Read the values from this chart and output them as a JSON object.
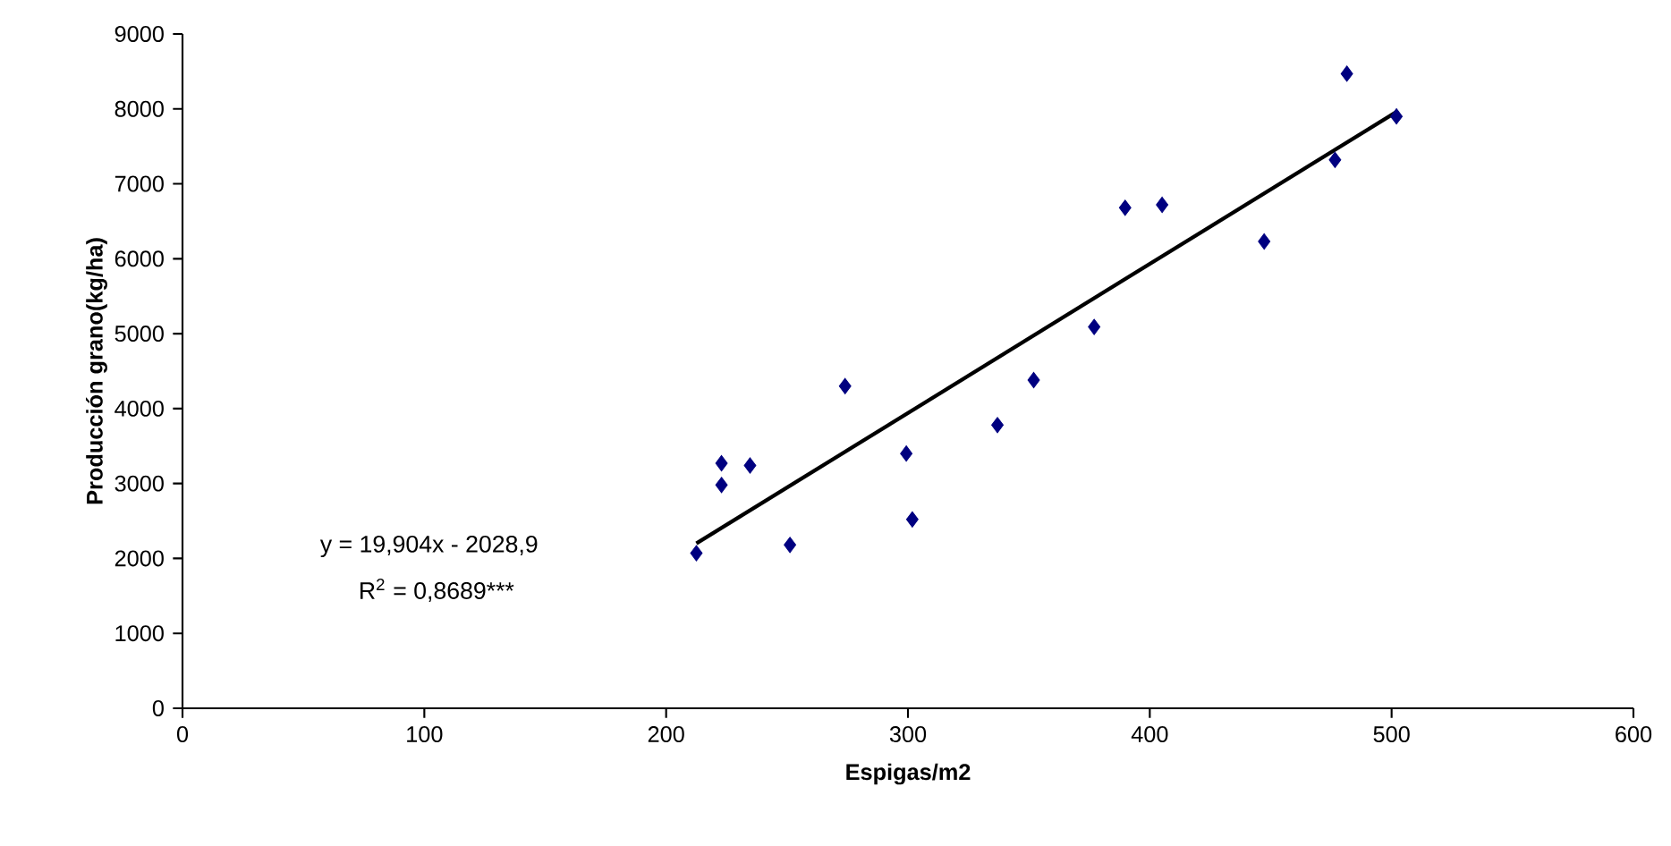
{
  "chart_data": {
    "type": "scatter",
    "xlabel": "Espigas/m2",
    "ylabel": "Producción grano(kg/ha)",
    "xlim": [
      0,
      600
    ],
    "xticks": [
      0,
      100,
      200,
      300,
      400,
      500,
      600
    ],
    "ylim": [
      0,
      9000
    ],
    "yticks": [
      0,
      1000,
      2000,
      3000,
      4000,
      5000,
      6000,
      7000,
      8000,
      9000
    ],
    "grid": false,
    "marker": "diamond",
    "series": [
      {
        "color": "#000080",
        "x": [
          212.5,
          222.9,
          222.9,
          234.7,
          251.2,
          274,
          299.3,
          301.8,
          337.0,
          352,
          377,
          389.8,
          405.1,
          447.3,
          476.6,
          481.5,
          502
        ],
        "values": [
          2070,
          3270,
          2980,
          3240,
          2180,
          4300,
          3400,
          2520,
          3780,
          4380,
          5090,
          6680,
          6720,
          6230,
          7320,
          8470,
          7900
        ]
      },
      {
        "type": "line",
        "color": "#000000",
        "marker": "none",
        "line_style": "solid",
        "x": [
          212.5,
          502
        ],
        "values": [
          2200,
          7960
        ]
      }
    ],
    "annotations": [
      "y = 19,904x - 2028,9",
      "R$^{2}$ = 0,8689***"
    ]
  }
}
